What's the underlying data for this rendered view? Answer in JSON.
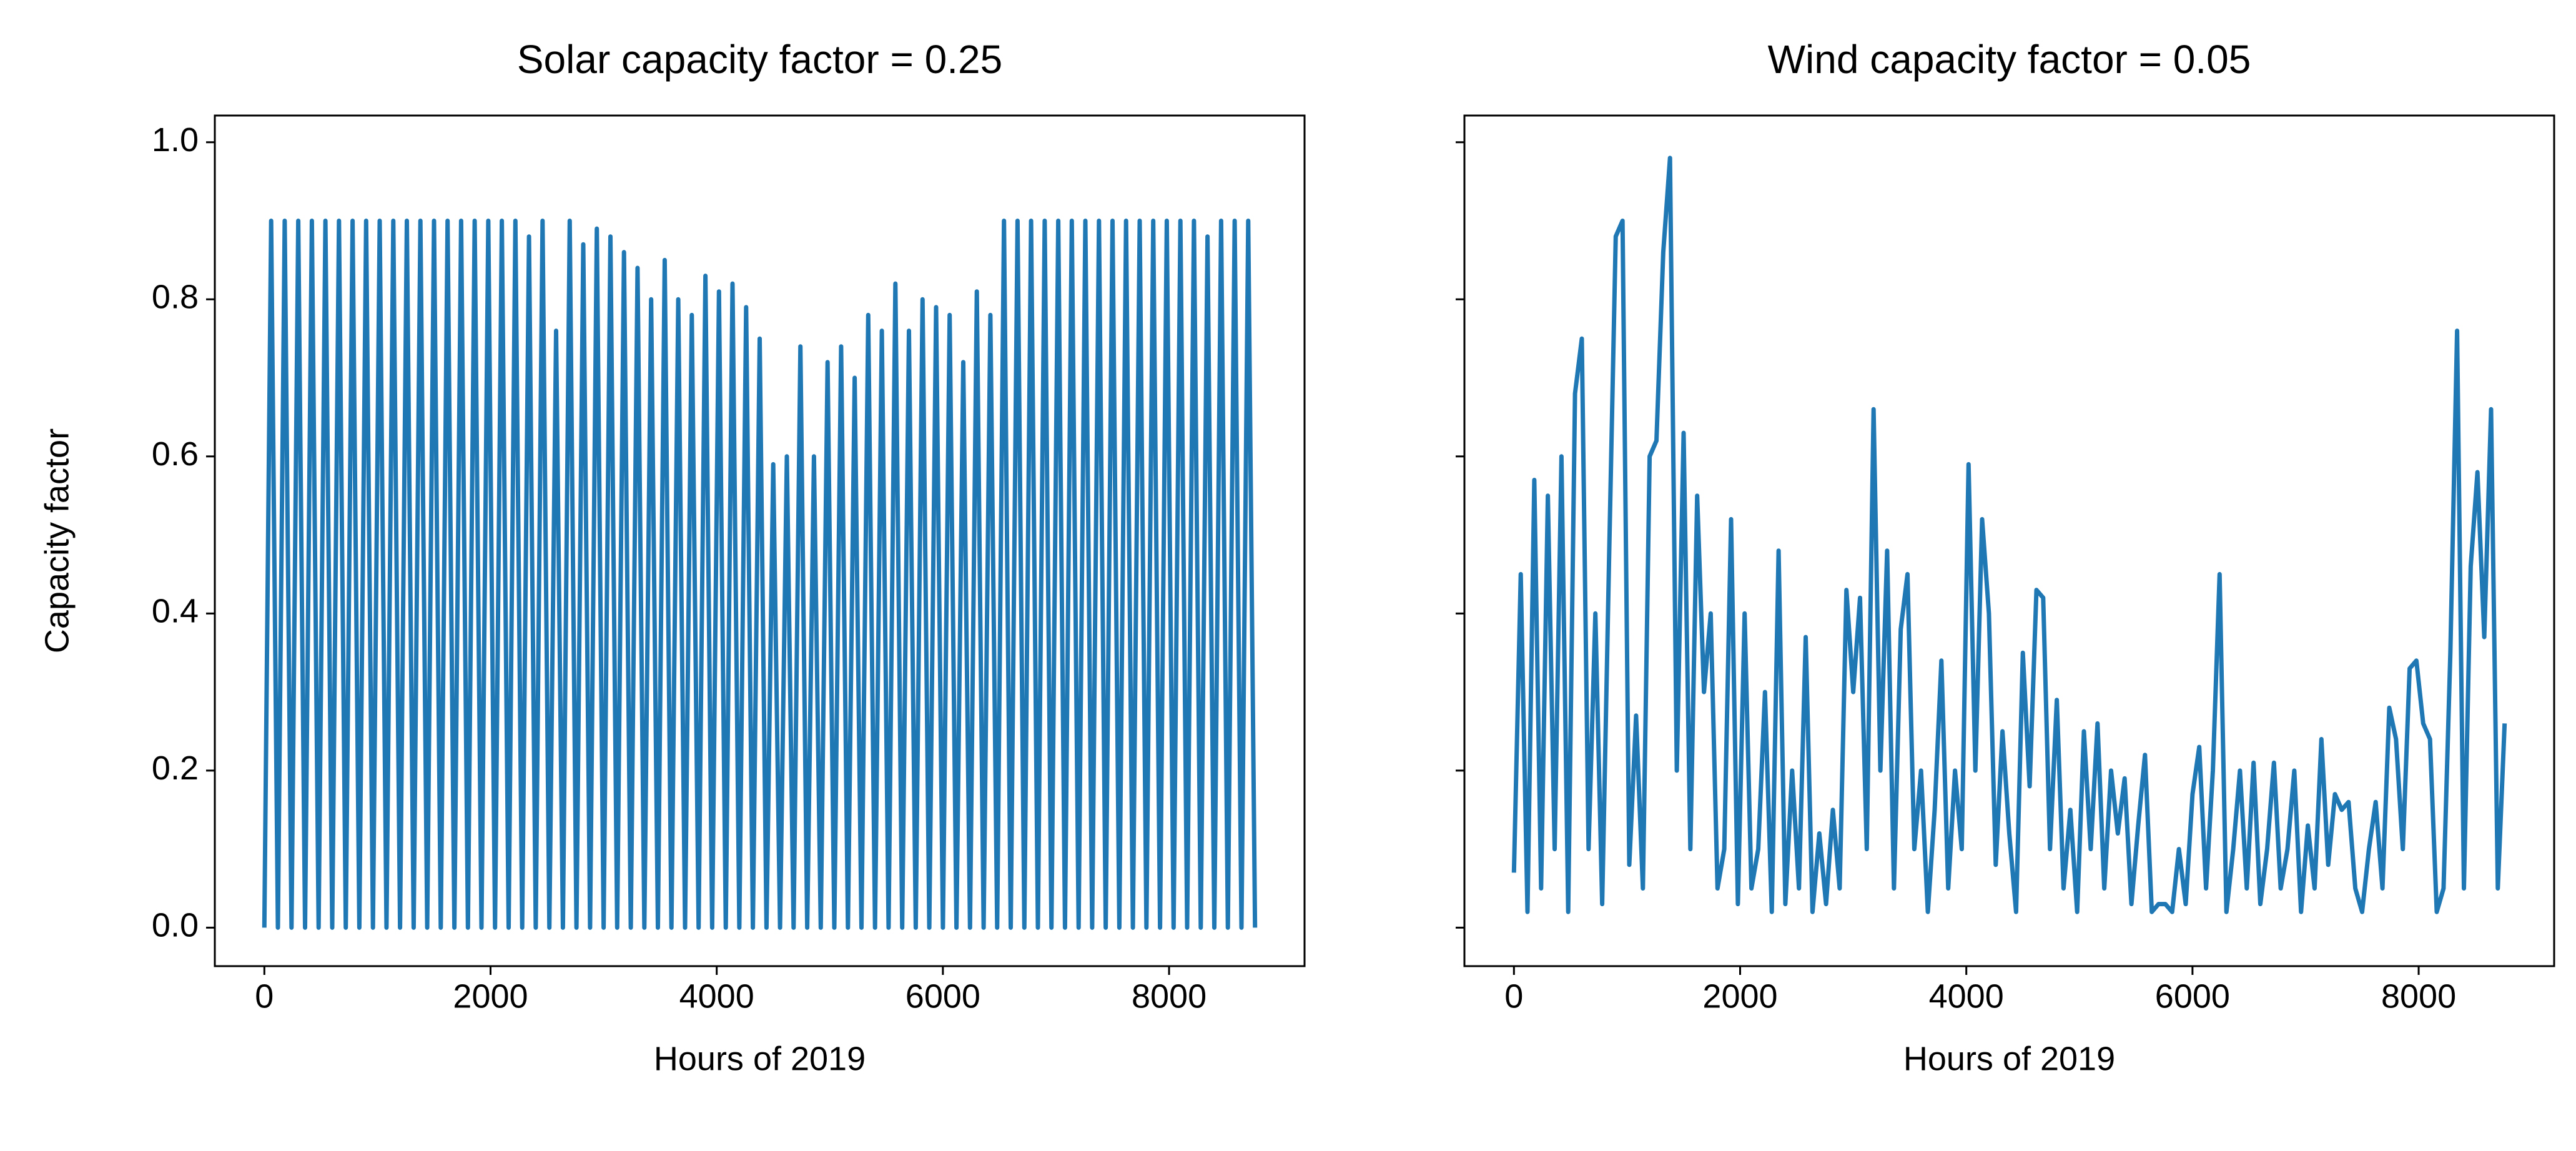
{
  "chart_data": [
    {
      "type": "line",
      "title": "Solar capacity factor =  0.25",
      "xlabel": "Hours of 2019",
      "ylabel": "Capacity factor",
      "color": "#1f77b4",
      "x": [
        0,
        60,
        120,
        180,
        240,
        300,
        360,
        420,
        480,
        540,
        600,
        660,
        720,
        780,
        840,
        900,
        960,
        1020,
        1080,
        1140,
        1200,
        1260,
        1320,
        1380,
        1440,
        1500,
        1560,
        1620,
        1680,
        1740,
        1800,
        1860,
        1920,
        1980,
        2040,
        2100,
        2160,
        2220,
        2280,
        2340,
        2400,
        2460,
        2520,
        2580,
        2640,
        2700,
        2760,
        2820,
        2880,
        2940,
        3000,
        3060,
        3120,
        3180,
        3240,
        3300,
        3360,
        3420,
        3480,
        3540,
        3600,
        3660,
        3720,
        3780,
        3840,
        3900,
        3960,
        4020,
        4080,
        4140,
        4200,
        4260,
        4320,
        4380,
        4440,
        4500,
        4560,
        4620,
        4680,
        4740,
        4800,
        4860,
        4920,
        4980,
        5040,
        5100,
        5160,
        5220,
        5280,
        5340,
        5400,
        5460,
        5520,
        5580,
        5640,
        5700,
        5760,
        5820,
        5880,
        5940,
        6000,
        6060,
        6120,
        6180,
        6240,
        6300,
        6360,
        6420,
        6480,
        6540,
        6600,
        6660,
        6720,
        6780,
        6840,
        6900,
        6960,
        7020,
        7080,
        7140,
        7200,
        7260,
        7320,
        7380,
        7440,
        7500,
        7560,
        7620,
        7680,
        7740,
        7800,
        7860,
        7920,
        7980,
        8040,
        8100,
        8160,
        8220,
        8280,
        8340,
        8400,
        8460,
        8520,
        8580,
        8640,
        8700,
        8760
      ],
      "values": [
        0,
        0.9,
        0,
        0.9,
        0,
        0.9,
        0,
        0.9,
        0,
        0.9,
        0,
        0.9,
        0,
        0.9,
        0,
        0.9,
        0,
        0.9,
        0,
        0.9,
        0,
        0.9,
        0,
        0.9,
        0,
        0.9,
        0,
        0.9,
        0,
        0.9,
        0,
        0.9,
        0,
        0.9,
        0,
        0.9,
        0,
        0.9,
        0,
        0.88,
        0,
        0.9,
        0,
        0.76,
        0,
        0.9,
        0,
        0.87,
        0,
        0.89,
        0,
        0.88,
        0,
        0.86,
        0,
        0.84,
        0,
        0.8,
        0,
        0.85,
        0,
        0.8,
        0,
        0.78,
        0,
        0.83,
        0,
        0.81,
        0,
        0.82,
        0,
        0.79,
        0,
        0.75,
        0,
        0.59,
        0,
        0.6,
        0,
        0.74,
        0,
        0.6,
        0,
        0.72,
        0,
        0.74,
        0,
        0.7,
        0,
        0.78,
        0,
        0.76,
        0,
        0.82,
        0,
        0.76,
        0,
        0.8,
        0,
        0.79,
        0,
        0.78,
        0,
        0.72,
        0,
        0.81,
        0,
        0.78,
        0,
        0.9,
        0,
        0.9,
        0,
        0.9,
        0,
        0.9,
        0,
        0.9,
        0,
        0.9,
        0,
        0.9,
        0,
        0.9,
        0,
        0.9,
        0,
        0.9,
        0,
        0.9,
        0,
        0.9,
        0,
        0.9,
        0,
        0.9,
        0,
        0.9,
        0,
        0.88,
        0,
        0.9,
        0,
        0.9,
        0,
        0.9,
        0
      ],
      "xlim": [
        -438,
        9198
      ],
      "xticks": [
        0,
        2000,
        4000,
        6000,
        8000
      ],
      "ylim": [
        -0.049,
        1.034
      ],
      "yticks": [
        {
          "value": 0,
          "label": "0.0"
        },
        0.2,
        0.4,
        0.6,
        0.8,
        {
          "value": 1,
          "label": "1.0"
        }
      ]
    },
    {
      "type": "line",
      "title": "Wind capacity factor =  0.05",
      "xlabel": "Hours of 2019",
      "color": "#1f77b4",
      "show_ytick_labels": false,
      "x": [
        0,
        60,
        120,
        180,
        240,
        300,
        360,
        420,
        480,
        540,
        600,
        660,
        720,
        780,
        840,
        900,
        960,
        1020,
        1080,
        1140,
        1200,
        1260,
        1320,
        1380,
        1440,
        1500,
        1560,
        1620,
        1680,
        1740,
        1800,
        1860,
        1920,
        1980,
        2040,
        2100,
        2160,
        2220,
        2280,
        2340,
        2400,
        2460,
        2520,
        2580,
        2640,
        2700,
        2760,
        2820,
        2880,
        2940,
        3000,
        3060,
        3120,
        3180,
        3240,
        3300,
        3360,
        3420,
        3480,
        3540,
        3600,
        3660,
        3720,
        3780,
        3840,
        3900,
        3960,
        4020,
        4080,
        4140,
        4200,
        4260,
        4320,
        4380,
        4440,
        4500,
        4560,
        4620,
        4680,
        4740,
        4800,
        4860,
        4920,
        4980,
        5040,
        5100,
        5160,
        5220,
        5280,
        5340,
        5400,
        5460,
        5520,
        5580,
        5640,
        5700,
        5760,
        5820,
        5880,
        5940,
        6000,
        6060,
        6120,
        6180,
        6240,
        6300,
        6360,
        6420,
        6480,
        6540,
        6600,
        6660,
        6720,
        6780,
        6840,
        6900,
        6960,
        7020,
        7080,
        7140,
        7200,
        7260,
        7320,
        7380,
        7440,
        7500,
        7560,
        7620,
        7680,
        7740,
        7800,
        7860,
        7920,
        7980,
        8040,
        8100,
        8160,
        8220,
        8280,
        8340,
        8400,
        8460,
        8520,
        8580,
        8640,
        8700,
        8760
      ],
      "values": [
        0.07,
        0.45,
        0.02,
        0.57,
        0.05,
        0.55,
        0.1,
        0.6,
        0.02,
        0.68,
        0.75,
        0.1,
        0.4,
        0.03,
        0.46,
        0.88,
        0.9,
        0.08,
        0.27,
        0.05,
        0.6,
        0.62,
        0.86,
        0.98,
        0.2,
        0.63,
        0.1,
        0.55,
        0.3,
        0.4,
        0.05,
        0.1,
        0.52,
        0.03,
        0.4,
        0.05,
        0.1,
        0.3,
        0.02,
        0.48,
        0.03,
        0.2,
        0.05,
        0.37,
        0.02,
        0.12,
        0.03,
        0.15,
        0.05,
        0.43,
        0.3,
        0.42,
        0.1,
        0.66,
        0.2,
        0.48,
        0.05,
        0.38,
        0.45,
        0.1,
        0.2,
        0.02,
        0.15,
        0.34,
        0.05,
        0.2,
        0.1,
        0.59,
        0.2,
        0.52,
        0.4,
        0.08,
        0.25,
        0.12,
        0.02,
        0.35,
        0.18,
        0.43,
        0.42,
        0.1,
        0.29,
        0.05,
        0.15,
        0.02,
        0.25,
        0.1,
        0.26,
        0.05,
        0.2,
        0.12,
        0.19,
        0.03,
        0.13,
        0.22,
        0.02,
        0.03,
        0.03,
        0.02,
        0.1,
        0.03,
        0.17,
        0.23,
        0.05,
        0.2,
        0.45,
        0.02,
        0.1,
        0.2,
        0.05,
        0.21,
        0.03,
        0.1,
        0.21,
        0.05,
        0.1,
        0.2,
        0.02,
        0.13,
        0.05,
        0.24,
        0.08,
        0.17,
        0.15,
        0.16,
        0.05,
        0.02,
        0.1,
        0.16,
        0.05,
        0.28,
        0.24,
        0.1,
        0.33,
        0.34,
        0.26,
        0.24,
        0.02,
        0.05,
        0.35,
        0.76,
        0.05,
        0.46,
        0.58,
        0.37,
        0.66,
        0.05,
        0.26
      ],
      "xlim": [
        -438,
        9198
      ],
      "xticks": [
        0,
        2000,
        4000,
        6000,
        8000
      ],
      "ylim": [
        -0.049,
        1.034
      ],
      "yticks": [
        {
          "value": 0,
          "label": "0.0"
        },
        0.2,
        0.4,
        0.6,
        0.8,
        {
          "value": 1,
          "label": "1.0"
        }
      ]
    }
  ]
}
